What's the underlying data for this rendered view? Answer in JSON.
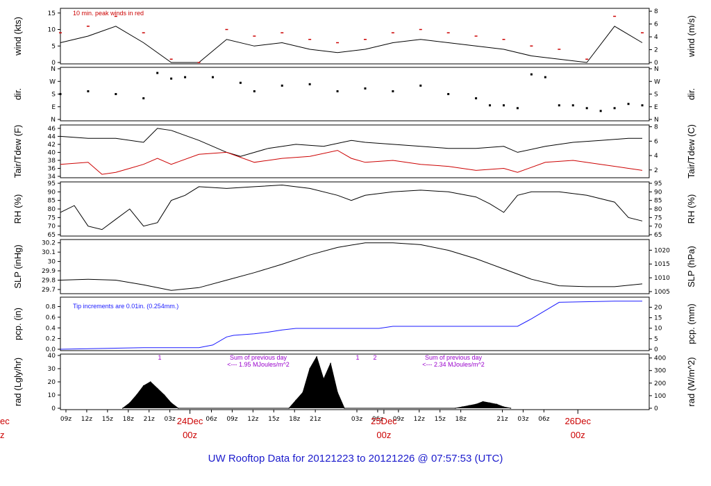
{
  "title": "UW Rooftop Data for 20121223  to  20121226 @ 07:57:53  (UTC)",
  "edge_labels": [
    "ec",
    "z"
  ],
  "hour_ticks": [
    "09z",
    "12z",
    "15z",
    "18z",
    "21z",
    "03z",
    "06z",
    "09z",
    "12z",
    "15z",
    "18z",
    "21z",
    "03z",
    "06z",
    "09z",
    "12z",
    "15z",
    "18z",
    "21z",
    "03z",
    "06z"
  ],
  "day_labels": [
    {
      "date": "24Dec",
      "hour": "00z"
    },
    {
      "date": "25Dec",
      "hour": "00z"
    },
    {
      "date": "26Dec",
      "hour": "00z"
    }
  ],
  "colors": {
    "red": "#cc0000",
    "blue": "#1a1aff",
    "purple": "#9900cc",
    "title": "#1a1acc"
  },
  "chart_data": [
    {
      "type": "line",
      "panel": "wind",
      "ylabel": "wind (kts)",
      "ylabel_right": "wind (m/s)",
      "yticks": [
        0,
        5,
        10,
        15
      ],
      "yticks_right": [
        0,
        2,
        4,
        6,
        8
      ],
      "ylim": [
        0,
        16
      ],
      "annotation": "10 min. peak winds in red",
      "series": [
        {
          "x": [
            0,
            4,
            8,
            12,
            16,
            20,
            24,
            28,
            32,
            36,
            40,
            44,
            48,
            52,
            56,
            60,
            64,
            68,
            72,
            76,
            80,
            84
          ],
          "y": [
            6,
            8,
            11,
            6,
            0,
            0,
            7,
            5,
            6,
            4,
            3,
            4,
            6,
            7,
            6,
            5,
            4,
            2,
            1,
            0,
            11,
            6
          ]
        },
        {
          "x": [
            0,
            4,
            8,
            12,
            16,
            20,
            24,
            28,
            32,
            36,
            40,
            44,
            48,
            52,
            56,
            60,
            64,
            68,
            72,
            76,
            80,
            84
          ],
          "y": [
            9,
            11,
            14,
            9,
            1,
            0,
            10,
            8,
            9,
            7,
            6,
            7,
            9,
            10,
            9,
            8,
            7,
            5,
            4,
            1,
            14,
            9
          ]
        }
      ]
    },
    {
      "type": "scatter",
      "panel": "dir.",
      "ylabel": "dir.",
      "ylabel_right": "dir.",
      "yticks": [
        "N",
        "E",
        "S",
        "W",
        "N"
      ],
      "yticks_right": [
        "N",
        "E",
        "S",
        "W",
        "N"
      ],
      "series": [
        {
          "x": [
            0,
            4,
            8,
            12,
            14,
            16,
            18,
            22,
            26,
            28,
            32,
            36,
            40,
            44,
            48,
            52,
            56,
            60,
            62,
            64,
            66,
            68,
            70,
            72,
            74,
            76,
            78,
            80,
            82,
            84
          ],
          "y": [
            180,
            200,
            180,
            150,
            330,
            290,
            300,
            300,
            260,
            200,
            240,
            250,
            200,
            220,
            200,
            240,
            180,
            150,
            100,
            100,
            80,
            320,
            300,
            100,
            100,
            80,
            60,
            80,
            110,
            100
          ]
        }
      ]
    },
    {
      "type": "line",
      "panel": "temperature",
      "ylabel": "Tair/Tdew (F)",
      "ylabel_right": "Tair/Tdew (C)",
      "yticks": [
        34,
        36,
        38,
        40,
        42,
        44,
        46
      ],
      "yticks_right": [
        2,
        4,
        6,
        8
      ],
      "ylim": [
        34,
        46.5
      ],
      "series": [
        {
          "x": [
            0,
            4,
            8,
            12,
            14,
            16,
            20,
            24,
            26,
            30,
            34,
            38,
            42,
            44,
            48,
            52,
            56,
            60,
            64,
            66,
            70,
            74,
            78,
            82,
            84
          ],
          "y": [
            44,
            43.5,
            43.5,
            42.5,
            46,
            45.5,
            43,
            40,
            39,
            41,
            42,
            41.5,
            43,
            42.5,
            42,
            41.5,
            41,
            41,
            41.5,
            40,
            41.5,
            42.5,
            43,
            43.5,
            43.5
          ]
        },
        {
          "x": [
            0,
            4,
            6,
            8,
            10,
            12,
            14,
            16,
            20,
            24,
            28,
            32,
            36,
            40,
            42,
            44,
            48,
            52,
            56,
            60,
            64,
            66,
            70,
            74,
            78,
            82,
            84
          ],
          "y": [
            37,
            37.5,
            34.5,
            35,
            36,
            37,
            38.5,
            37,
            39.5,
            40,
            37.5,
            38.5,
            39,
            40.5,
            38.5,
            37.5,
            38,
            37,
            36.5,
            35.5,
            36,
            35,
            37.5,
            38,
            37,
            36,
            35.5
          ]
        }
      ]
    },
    {
      "type": "line",
      "panel": "RH",
      "ylabel": "RH (%)",
      "ylabel_right": "RH (%)",
      "yticks": [
        65,
        70,
        75,
        80,
        85,
        90,
        95
      ],
      "yticks_right": [
        65,
        70,
        75,
        80,
        85,
        90,
        95
      ],
      "ylim": [
        65,
        95
      ],
      "series": [
        {
          "x": [
            0,
            2,
            4,
            6,
            8,
            10,
            12,
            14,
            16,
            18,
            20,
            24,
            28,
            32,
            36,
            40,
            42,
            44,
            48,
            52,
            56,
            60,
            62,
            64,
            66,
            68,
            72,
            76,
            80,
            82,
            84
          ],
          "y": [
            78,
            82,
            70,
            68,
            74,
            80,
            70,
            72,
            85,
            88,
            93,
            92,
            93,
            94,
            92,
            88,
            85,
            88,
            90,
            91,
            90,
            87,
            83,
            78,
            88,
            90,
            90,
            88,
            84,
            75,
            73
          ]
        }
      ]
    },
    {
      "type": "line",
      "panel": "SLP",
      "ylabel": "SLP (inHg)",
      "ylabel_right": "SLP (hPa)",
      "yticks": [
        29.7,
        29.8,
        29.9,
        30.0,
        30.1,
        30.2
      ],
      "yticks_right": [
        1005,
        1010,
        1015,
        1020
      ],
      "ylim": [
        29.67,
        30.22
      ],
      "series": [
        {
          "x": [
            0,
            4,
            8,
            12,
            16,
            20,
            24,
            28,
            32,
            36,
            40,
            44,
            48,
            52,
            56,
            60,
            64,
            68,
            72,
            76,
            80,
            84
          ],
          "y": [
            29.8,
            29.81,
            29.8,
            29.75,
            29.69,
            29.72,
            29.8,
            29.88,
            29.97,
            30.07,
            30.15,
            30.2,
            30.2,
            30.18,
            30.12,
            30.03,
            29.92,
            29.81,
            29.74,
            29.73,
            29.73,
            29.76
          ]
        }
      ]
    },
    {
      "type": "line",
      "panel": "pcp",
      "ylabel": "pcp. (in)",
      "ylabel_right": "pcp. (mm)",
      "yticks": [
        0.0,
        0.2,
        0.4,
        0.6,
        0.8
      ],
      "yticks_right": [
        0,
        5,
        10,
        15,
        20
      ],
      "ylim": [
        0,
        0.95
      ],
      "annotation": "Tip increments are 0.01in. (0.254mm.)",
      "series": [
        {
          "x": [
            0,
            8,
            12,
            20,
            22,
            24,
            25,
            28,
            30,
            32,
            34,
            46,
            48,
            66,
            68,
            72,
            80,
            84
          ],
          "y": [
            0,
            0.02,
            0.03,
            0.03,
            0.08,
            0.23,
            0.26,
            0.29,
            0.32,
            0.36,
            0.39,
            0.39,
            0.43,
            0.43,
            0.57,
            0.88,
            0.9,
            0.9
          ]
        }
      ]
    },
    {
      "type": "area",
      "panel": "rad",
      "ylabel": "rad (Lgly/hr)",
      "ylabel_right": "rad (W/m^2)",
      "yticks": [
        0,
        10,
        20,
        30,
        40
      ],
      "yticks_right": [
        0,
        100,
        200,
        300,
        400
      ],
      "ylim": [
        0,
        40
      ],
      "annotations": [
        {
          "text": "1"
        },
        {
          "text": "Sum of previous day"
        },
        {
          "text": "<--- 1.95 MJoules/m^2"
        },
        {
          "text": "1"
        },
        {
          "text": "2"
        },
        {
          "text": "Sum of previous day"
        },
        {
          "text": "<--- 2.34 MJoules/m^2"
        }
      ],
      "series": [
        {
          "x": [
            9,
            10,
            11,
            12,
            13,
            14,
            15,
            16,
            17,
            33,
            34,
            35,
            36,
            37,
            38,
            39,
            40,
            41,
            57,
            58,
            59,
            60,
            61,
            62,
            63,
            64,
            65
          ],
          "y": [
            0,
            4,
            10,
            17,
            20,
            15,
            10,
            4,
            0,
            0,
            6,
            12,
            30,
            39,
            22,
            34,
            12,
            0,
            0,
            1,
            2,
            3,
            5,
            4,
            3,
            1,
            0
          ]
        }
      ]
    }
  ]
}
